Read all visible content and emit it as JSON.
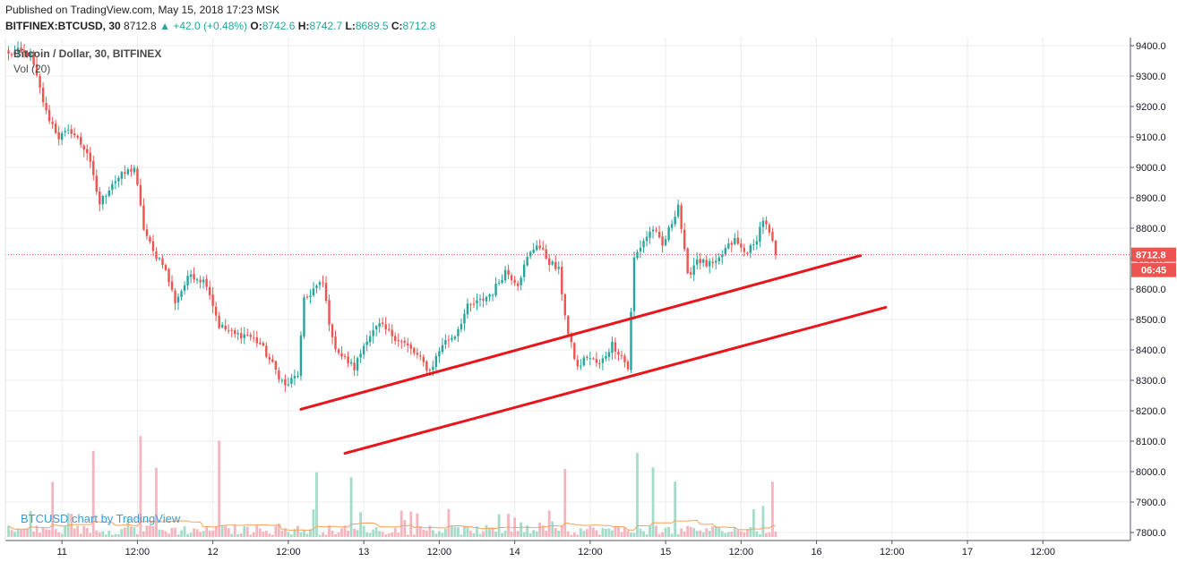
{
  "header": {
    "published": "Published on TradingView.com, May 15, 2018 17:23 MSK",
    "symbol": "BITFINEX:BTCUSD, 30",
    "last": "8712.8",
    "change": "+42.0 (+0.48%)",
    "o_label": "O:",
    "o_value": "8742.6",
    "h_label": "H:",
    "h_value": "8742.7",
    "l_label": "L:",
    "l_value": "8689.5",
    "c_label": "C:",
    "c_value": "8712.8"
  },
  "legend": {
    "series_title": "Bitcoin / Dollar, 30, BITFINEX",
    "volume_title": "Vol (20)"
  },
  "watermark": "BTCUSD chart by TradingView",
  "colors": {
    "up": "#26a69a",
    "down": "#ef5350",
    "trendline": "#e8151b",
    "price_label_bg": "#ef5350",
    "volume_up": "#a5dcc9",
    "volume_down": "#f5b5be",
    "volume_ma": "#f5a35c",
    "grid": "#e9edf2"
  },
  "chart_data": {
    "type": "candlestick",
    "title": "Bitcoin / Dollar, 30, BITFINEX",
    "interval": "30",
    "x_ticks": [
      {
        "label": "11",
        "bar": 17
      },
      {
        "label": "12:00",
        "bar": 41
      },
      {
        "label": "12",
        "bar": 65
      },
      {
        "label": "12:00",
        "bar": 89
      },
      {
        "label": "13",
        "bar": 113
      },
      {
        "label": "12:00",
        "bar": 137
      },
      {
        "label": "14",
        "bar": 161
      },
      {
        "label": "12:00",
        "bar": 185
      },
      {
        "label": "15",
        "bar": 209
      },
      {
        "label": "12:00",
        "bar": 233
      },
      {
        "label": "16",
        "bar": 257
      },
      {
        "label": "12:00",
        "bar": 281
      },
      {
        "label": "17",
        "bar": 305
      },
      {
        "label": "12:00",
        "bar": 329
      }
    ],
    "y_ticks": [
      "9400.0",
      "9300.0",
      "9200.0",
      "9100.0",
      "9000.0",
      "8900.0",
      "8800.0",
      "8700.0",
      "8600.0",
      "8500.0",
      "8400.0",
      "8300.0",
      "8200.0",
      "8100.0",
      "8000.0",
      "7900.0",
      "7800.0"
    ],
    "y_tick_values": [
      9400,
      9300,
      9200,
      9100,
      9000,
      8900,
      8800,
      8700,
      8600,
      8500,
      8400,
      8300,
      8200,
      8100,
      8000,
      7900,
      7800
    ],
    "y_range": [
      7780,
      9420
    ],
    "bars_per_day": 48,
    "last_price": 8712.8,
    "last_price_label": "8712.8",
    "countdown_label": "06:45",
    "close_anchors": [
      [
        0,
        9370
      ],
      [
        3,
        9380
      ],
      [
        7,
        9370
      ],
      [
        12,
        9180
      ],
      [
        16,
        9100
      ],
      [
        20,
        9120
      ],
      [
        25,
        9050
      ],
      [
        29,
        8880
      ],
      [
        33,
        8950
      ],
      [
        37,
        8980
      ],
      [
        40,
        9000
      ],
      [
        43,
        8800
      ],
      [
        46,
        8720
      ],
      [
        49,
        8690
      ],
      [
        53,
        8560
      ],
      [
        58,
        8650
      ],
      [
        63,
        8620
      ],
      [
        67,
        8480
      ],
      [
        72,
        8450
      ],
      [
        76,
        8450
      ],
      [
        80,
        8420
      ],
      [
        84,
        8350
      ],
      [
        88,
        8280
      ],
      [
        92,
        8320
      ],
      [
        94,
        8560
      ],
      [
        97,
        8600
      ],
      [
        100,
        8620
      ],
      [
        103,
        8430
      ],
      [
        106,
        8380
      ],
      [
        110,
        8340
      ],
      [
        114,
        8440
      ],
      [
        118,
        8480
      ],
      [
        122,
        8450
      ],
      [
        126,
        8420
      ],
      [
        130,
        8380
      ],
      [
        134,
        8330
      ],
      [
        138,
        8420
      ],
      [
        142,
        8450
      ],
      [
        146,
        8540
      ],
      [
        150,
        8560
      ],
      [
        154,
        8590
      ],
      [
        158,
        8660
      ],
      [
        162,
        8620
      ],
      [
        165,
        8700
      ],
      [
        168,
        8750
      ],
      [
        172,
        8690
      ],
      [
        175,
        8660
      ],
      [
        178,
        8450
      ],
      [
        181,
        8340
      ],
      [
        184,
        8380
      ],
      [
        188,
        8350
      ],
      [
        192,
        8420
      ],
      [
        195,
        8380
      ],
      [
        197,
        8340
      ],
      [
        199,
        8700
      ],
      [
        202,
        8760
      ],
      [
        205,
        8800
      ],
      [
        208,
        8740
      ],
      [
        211,
        8820
      ],
      [
        213,
        8880
      ],
      [
        216,
        8640
      ],
      [
        219,
        8700
      ],
      [
        222,
        8680
      ],
      [
        225,
        8680
      ],
      [
        228,
        8730
      ],
      [
        231,
        8760
      ],
      [
        234,
        8720
      ],
      [
        237,
        8740
      ],
      [
        240,
        8830
      ],
      [
        242,
        8780
      ],
      [
        244,
        8712.8
      ]
    ],
    "volume_spikes": [
      [
        14,
        7
      ],
      [
        27,
        11
      ],
      [
        42,
        14
      ],
      [
        47,
        9
      ],
      [
        67,
        12
      ],
      [
        98,
        8
      ],
      [
        109,
        7
      ],
      [
        177,
        8
      ],
      [
        200,
        12
      ],
      [
        205,
        9
      ],
      [
        212,
        7
      ],
      [
        240,
        4
      ],
      [
        243,
        6
      ]
    ],
    "trendlines": [
      {
        "start_bar": 93,
        "start_price": 8205,
        "end_bar": 271,
        "end_price": 8710
      },
      {
        "start_bar": 107,
        "start_price": 8060,
        "end_bar": 279,
        "end_price": 8540
      }
    ]
  }
}
